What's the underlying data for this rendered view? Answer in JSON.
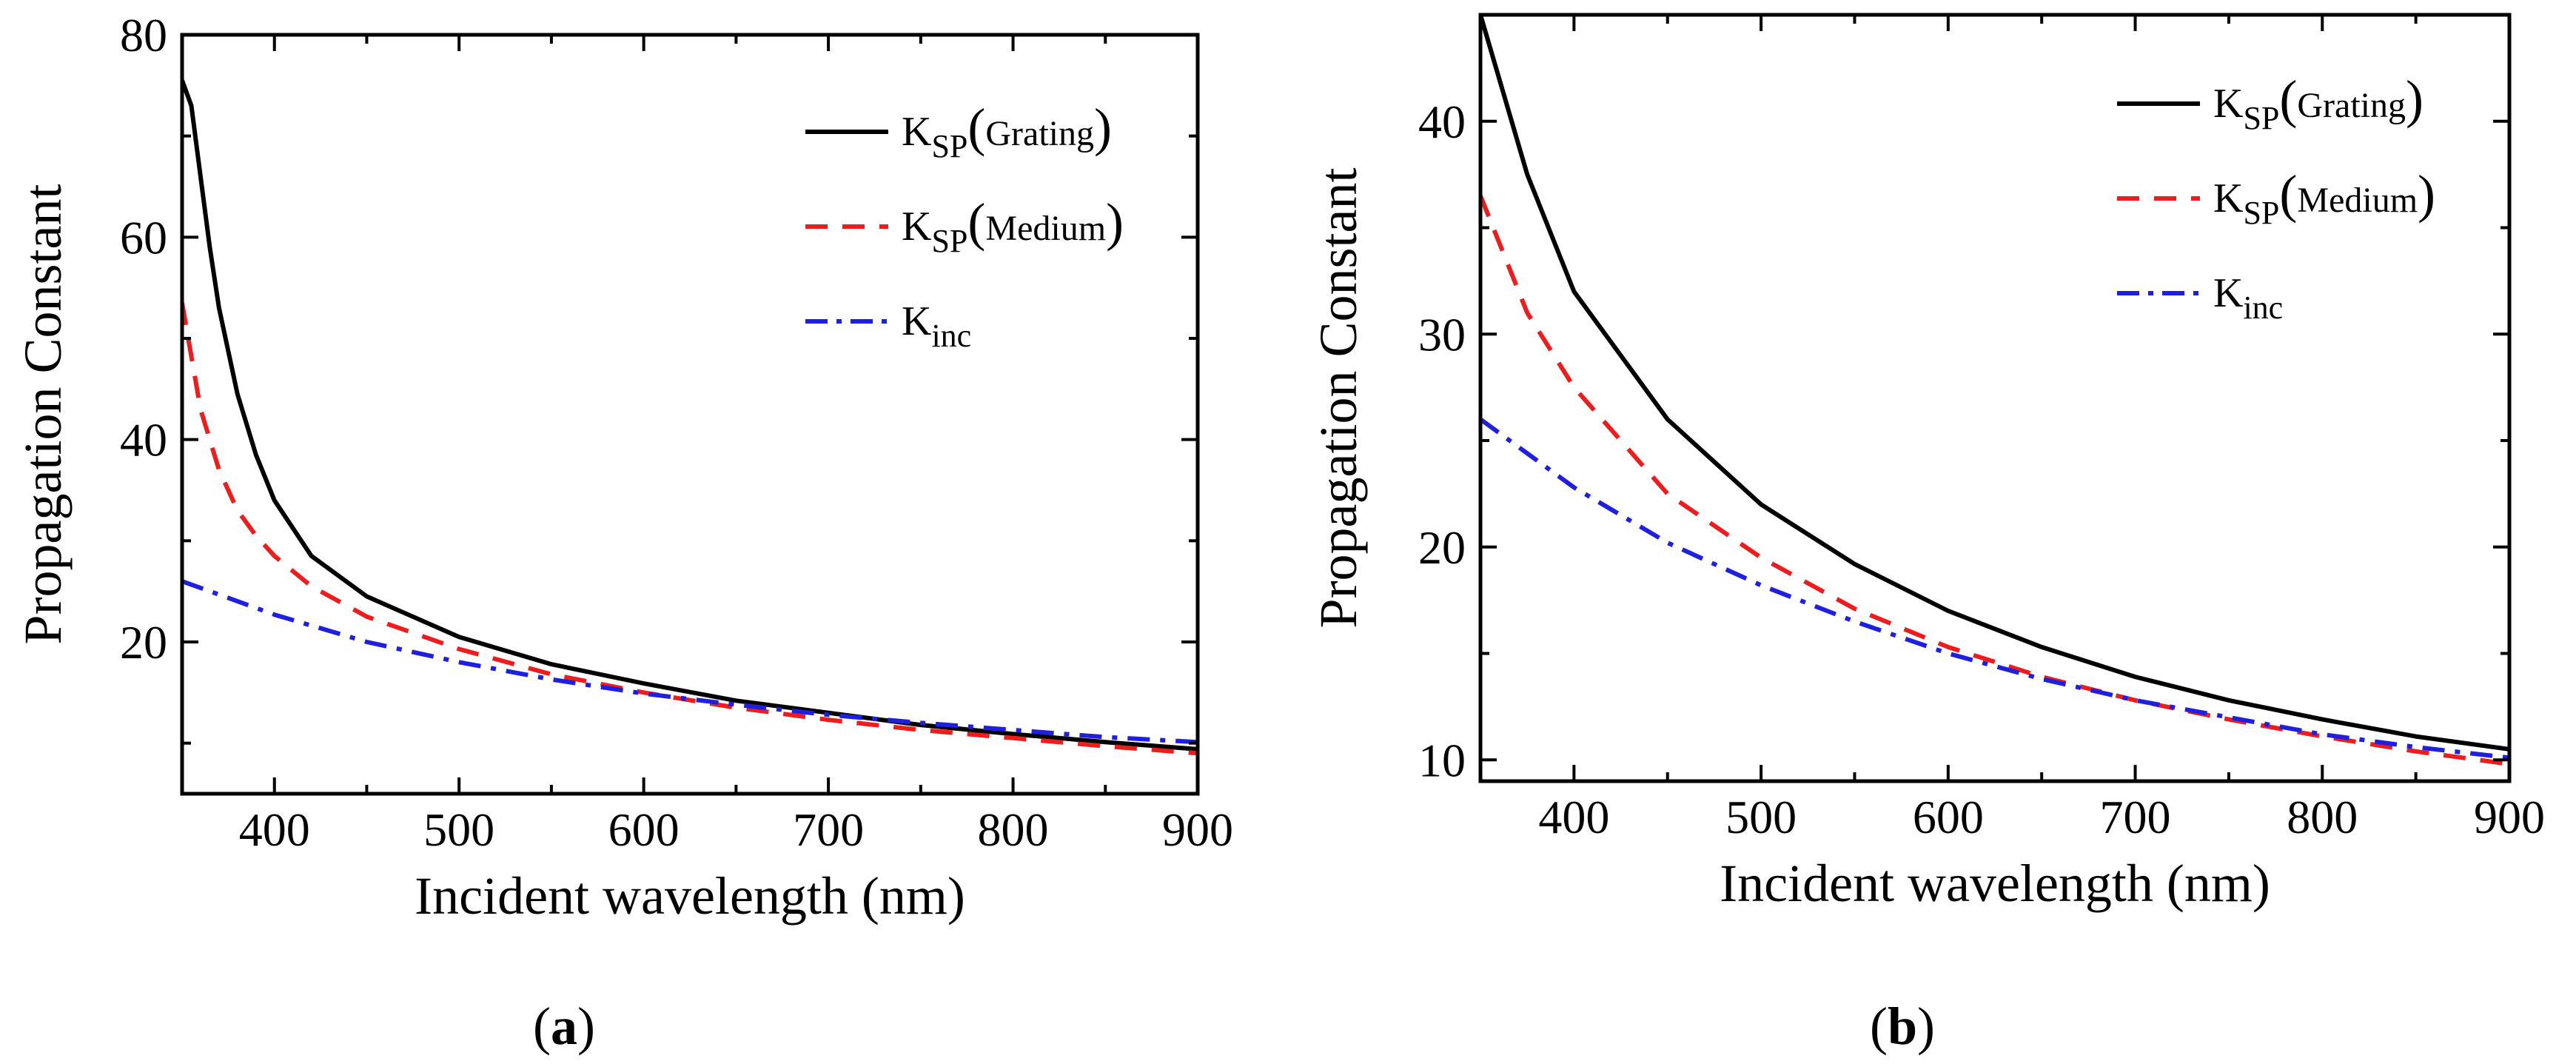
{
  "chart_data": [
    {
      "type": "line",
      "panel_label": "a",
      "xlabel": "Incident wavelength (nm)",
      "ylabel": "Propagation Constant",
      "xlim": [
        350,
        900
      ],
      "ylim": [
        5,
        80
      ],
      "xticks": [
        400,
        500,
        600,
        700,
        800,
        900
      ],
      "yticks": [
        20,
        40,
        60,
        80
      ],
      "legend_position": "top-right",
      "series": [
        {
          "name": "K_SP(Grating)",
          "legend_main": "K",
          "legend_sub": "SP",
          "legend_paren": "Grating",
          "color": "#000000",
          "style": "solid",
          "x": [
            350,
            355,
            360,
            365,
            370,
            380,
            390,
            400,
            420,
            450,
            500,
            550,
            600,
            650,
            700,
            750,
            800,
            850,
            900
          ],
          "y": [
            75.5,
            73,
            66,
            59,
            53,
            44.5,
            38.5,
            34,
            28.5,
            24.5,
            20.5,
            17.8,
            15.9,
            14.2,
            13,
            11.8,
            10.9,
            10.1,
            9.4
          ]
        },
        {
          "name": "K_SP(Medium)",
          "legend_main": "K",
          "legend_sub": "SP",
          "legend_paren": "Medium",
          "color": "#ee1c1c",
          "style": "dashed",
          "x": [
            350,
            360,
            370,
            380,
            390,
            400,
            420,
            450,
            500,
            550,
            600,
            650,
            700,
            750,
            800,
            850,
            900
          ],
          "y": [
            53.5,
            43,
            37,
            33,
            30.5,
            28.5,
            25.5,
            22.5,
            19.3,
            16.8,
            15,
            13.5,
            12.3,
            11.3,
            10.5,
            9.7,
            9
          ]
        },
        {
          "name": "K_inc",
          "legend_main": "K",
          "legend_sub": "inc",
          "legend_paren": "",
          "color": "#1f1fe0",
          "style": "dashdot",
          "x": [
            350,
            400,
            450,
            500,
            550,
            600,
            650,
            700,
            750,
            800,
            850,
            900
          ],
          "y": [
            26,
            22.7,
            20,
            18,
            16.3,
            14.9,
            13.8,
            12.8,
            12,
            11.3,
            10.6,
            10.1
          ]
        }
      ]
    },
    {
      "type": "line",
      "panel_label": "b",
      "xlabel": "Incident wavelength (nm)",
      "ylabel": "Propagation Constant",
      "xlim": [
        350,
        900
      ],
      "ylim": [
        9,
        45
      ],
      "xticks": [
        400,
        500,
        600,
        700,
        800,
        900
      ],
      "yticks": [
        10,
        20,
        30,
        40
      ],
      "legend_position": "top-right",
      "series": [
        {
          "name": "K_SP(Grating)",
          "legend_main": "K",
          "legend_sub": "SP",
          "legend_paren": "Grating",
          "color": "#000000",
          "style": "solid",
          "x": [
            350,
            375,
            400,
            450,
            500,
            550,
            600,
            650,
            700,
            750,
            800,
            850,
            900
          ],
          "y": [
            45,
            37.5,
            32,
            26,
            22,
            19.2,
            17,
            15.3,
            13.9,
            12.8,
            11.9,
            11.1,
            10.5
          ]
        },
        {
          "name": "K_SP(Medium)",
          "legend_main": "K",
          "legend_sub": "SP",
          "legend_paren": "Medium",
          "color": "#ee1c1c",
          "style": "dashed",
          "x": [
            350,
            375,
            400,
            450,
            500,
            550,
            600,
            650,
            700,
            750,
            800,
            850,
            900
          ],
          "y": [
            36.5,
            31,
            27.5,
            22.5,
            19.5,
            17.1,
            15.3,
            13.9,
            12.8,
            11.9,
            11.1,
            10.4,
            9.8
          ]
        },
        {
          "name": "K_inc",
          "legend_main": "K",
          "legend_sub": "inc",
          "legend_paren": "",
          "color": "#1f1fe0",
          "style": "dashdot",
          "x": [
            350,
            400,
            450,
            500,
            550,
            600,
            650,
            700,
            750,
            800,
            850,
            900
          ],
          "y": [
            26,
            22.8,
            20.2,
            18.2,
            16.5,
            15,
            13.8,
            12.8,
            12,
            11.2,
            10.6,
            10.1
          ]
        }
      ]
    }
  ]
}
